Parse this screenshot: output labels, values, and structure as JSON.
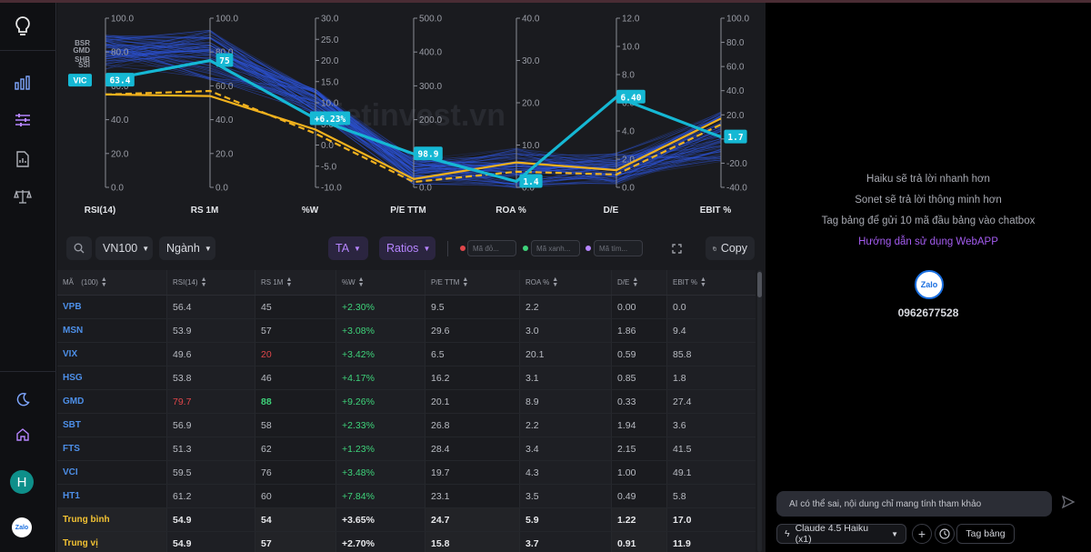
{
  "sidebar": {
    "avatar_letter": "H",
    "zalo_label": "Zalo"
  },
  "toolbar": {
    "index_select": "VN100",
    "sector_select": "Ngành",
    "ta_select": "TA",
    "ratios_select": "Ratios",
    "red_placeholder": "Mã đỏ...",
    "green_placeholder": "Mã xanh...",
    "purple_placeholder": "Mã tím...",
    "copy_label": "Copy"
  },
  "table": {
    "headers": [
      "MÃ",
      "(100)",
      "RSI(14)",
      "RS 1M",
      "%W",
      "P/E TTM",
      "ROA %",
      "D/E",
      "EBIT %"
    ],
    "rows": [
      {
        "code": "VPB",
        "rsi": "56.4",
        "rs1m": "45",
        "w": "+2.30%",
        "pe": "9.5",
        "roa": "2.2",
        "de": "0.00",
        "ebit": "0.0"
      },
      {
        "code": "MSN",
        "rsi": "53.9",
        "rs1m": "57",
        "w": "+3.08%",
        "pe": "29.6",
        "roa": "3.0",
        "de": "1.86",
        "ebit": "9.4"
      },
      {
        "code": "VIX",
        "rsi": "49.6",
        "rs1m": "20",
        "w": "+3.42%",
        "pe": "6.5",
        "roa": "20.1",
        "de": "0.59",
        "ebit": "85.8"
      },
      {
        "code": "HSG",
        "rsi": "53.8",
        "rs1m": "46",
        "w": "+4.17%",
        "pe": "16.2",
        "roa": "3.1",
        "de": "0.85",
        "ebit": "1.8"
      },
      {
        "code": "GMD",
        "rsi": "79.7",
        "rs1m": "88",
        "w": "+9.26%",
        "pe": "20.1",
        "roa": "8.9",
        "de": "0.33",
        "ebit": "27.4"
      },
      {
        "code": "SBT",
        "rsi": "56.9",
        "rs1m": "58",
        "w": "+2.33%",
        "pe": "26.8",
        "roa": "2.2",
        "de": "1.94",
        "ebit": "3.6"
      },
      {
        "code": "FTS",
        "rsi": "51.3",
        "rs1m": "62",
        "w": "+1.23%",
        "pe": "28.4",
        "roa": "3.4",
        "de": "2.15",
        "ebit": "41.5"
      },
      {
        "code": "VCI",
        "rsi": "59.5",
        "rs1m": "76",
        "w": "+3.48%",
        "pe": "19.7",
        "roa": "4.3",
        "de": "1.00",
        "ebit": "49.1"
      },
      {
        "code": "HT1",
        "rsi": "61.2",
        "rs1m": "60",
        "w": "+7.84%",
        "pe": "23.1",
        "roa": "3.5",
        "de": "0.49",
        "ebit": "5.8"
      }
    ],
    "summary": [
      {
        "code": "Trung bình",
        "rsi": "54.9",
        "rs1m": "54",
        "w": "+3.65%",
        "pe": "24.7",
        "roa": "5.9",
        "de": "1.22",
        "ebit": "17.0"
      },
      {
        "code": "Trung vị",
        "rsi": "54.9",
        "rs1m": "57",
        "w": "+2.70%",
        "pe": "15.8",
        "roa": "3.7",
        "de": "0.91",
        "ebit": "11.9"
      }
    ]
  },
  "chart_data": {
    "type": "line",
    "title": "",
    "watermark": "vietinvest.vn",
    "axes": [
      {
        "label": "RSI(14)",
        "ticks": [
          "100.0",
          "80.0",
          "60.0",
          "40.0",
          "20.0",
          "0.0"
        ],
        "range": [
          0,
          100
        ]
      },
      {
        "label": "RS 1M",
        "ticks": [
          "100.0",
          "80.0",
          "60.0",
          "40.0",
          "20.0",
          "0.0"
        ],
        "range": [
          0,
          100
        ]
      },
      {
        "label": "%W",
        "ticks": [
          "30.0",
          "25.0",
          "20.0",
          "15.0",
          "10.0",
          "5.0",
          "0.0",
          "-5.0",
          "-10.0"
        ],
        "range": [
          -10,
          30
        ]
      },
      {
        "label": "P/E TTM",
        "ticks": [
          "500.0",
          "400.0",
          "300.0",
          "200.0",
          "100.0",
          "0.0"
        ],
        "range": [
          0,
          500
        ]
      },
      {
        "label": "ROA %",
        "ticks": [
          "40.0",
          "30.0",
          "20.0",
          "10.0",
          "0.0"
        ],
        "range": [
          0,
          40
        ]
      },
      {
        "label": "D/E",
        "ticks": [
          "12.0",
          "10.0",
          "8.0",
          "6.0",
          "4.0",
          "2.0",
          "0.0"
        ],
        "range": [
          0,
          12
        ]
      },
      {
        "label": "EBIT %",
        "ticks": [
          "100.0",
          "80.0",
          "60.0",
          "40.0",
          "20.0",
          "0.0",
          "-20.0",
          "-40.0"
        ],
        "range": [
          -40,
          100
        ]
      }
    ],
    "ticker_labels": [
      "BSR",
      "GMD",
      "SHB",
      "SSI",
      "VIC"
    ],
    "highlight": {
      "name": "VIC",
      "values": [
        63.4,
        75,
        6.23,
        98.9,
        1.4,
        6.4,
        1.7
      ],
      "value_labels": [
        "63.4",
        "75",
        "+6.23%",
        "98.9",
        "1.4",
        "6.40",
        "1.7"
      ],
      "color": "#15b8d4"
    },
    "mean": {
      "values": [
        54.9,
        54,
        3.65,
        24.7,
        5.9,
        1.22,
        17.0
      ],
      "color": "#f2b21e"
    },
    "median": {
      "values": [
        54.9,
        57,
        2.7,
        15.8,
        3.7,
        0.91,
        11.9
      ],
      "color": "#f2b21e"
    },
    "background_series_color": "#2d54d8"
  },
  "right_panel": {
    "tip1": "Haiku sẽ trả lời nhanh hơn",
    "tip2": "Sonet sẽ trả lời thông minh hơn",
    "tip3": "Tag bảng để gửi 10 mã đầu bảng vào chatbox",
    "guide_link": "Hướng dẫn sử dụng WebAPP",
    "zalo_label": "Zalo",
    "phone": "0962677528",
    "chat_placeholder": "AI có thể sai, nội dung chỉ mang tính tham khảo",
    "model_select": "Claude 4.5 Haiku (x1)",
    "tag_button": "Tag bảng"
  }
}
